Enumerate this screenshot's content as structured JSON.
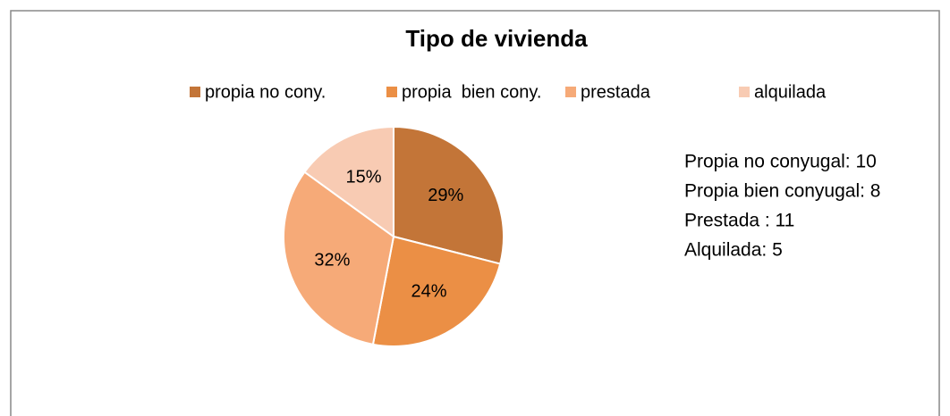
{
  "chart_data": {
    "type": "pie",
    "title": "Tipo de vivienda",
    "categories": [
      "propia no cony.",
      "propia  bien cony.",
      "prestada",
      "alquilada"
    ],
    "values": [
      29,
      24,
      32,
      15
    ],
    "value_labels": [
      "29%",
      "24%",
      "32%",
      "15%"
    ],
    "colors": [
      "#c37538",
      "#eb8f45",
      "#f6aa78",
      "#f8cbb3"
    ],
    "legend": "top",
    "annotations": [
      "Propia no conyugal: 10",
      "Propia bien conyugal: 8",
      "Prestada : 11",
      "Alquilada: 5"
    ]
  }
}
